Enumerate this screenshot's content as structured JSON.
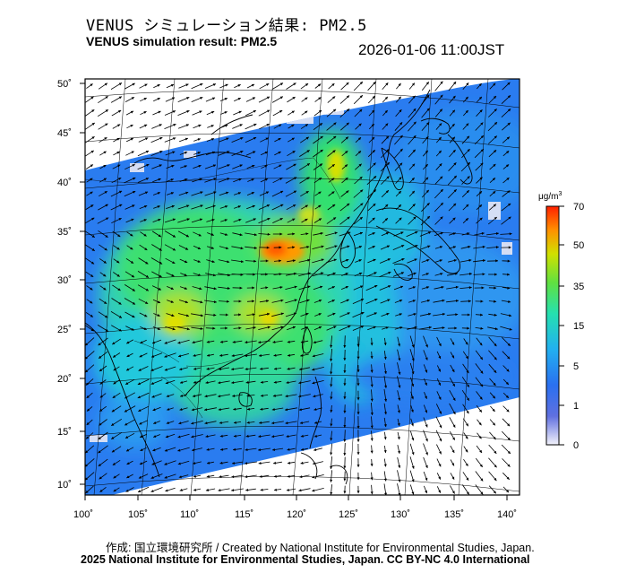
{
  "header": {
    "title_jp": "VENUS シミュレーション結果: PM2.5",
    "title_en": "VENUS simulation result: PM2.5",
    "timestamp": "2026-01-06 11:00JST"
  },
  "map": {
    "lat_ticks": [
      "50˚",
      "45˚",
      "40˚",
      "35˚",
      "30˚",
      "25˚",
      "20˚",
      "15˚",
      "10˚"
    ],
    "lon_ticks": [
      "100˚",
      "105˚",
      "110˚",
      "115˚",
      "120˚",
      "125˚",
      "130˚",
      "135˚",
      "140˚"
    ]
  },
  "colorbar": {
    "unit_html": "μg/m³",
    "labels": [
      "70",
      "50",
      "35",
      "15",
      "5",
      "1",
      "0"
    ],
    "colors": [
      "#e6e6f5",
      "#3050e6",
      "#2a8cf5",
      "#22c8dc",
      "#30e070",
      "#cce000",
      "#ff9900",
      "#ff2a00"
    ]
  },
  "footer": {
    "credit_line1": "作成: 国立環境研究所 / Created by National Institute for Environmental Studies, Japan.",
    "credit_line2": "2025 National Institute for Environmental Studies, Japan. CC BY-NC 4.0 International"
  }
}
